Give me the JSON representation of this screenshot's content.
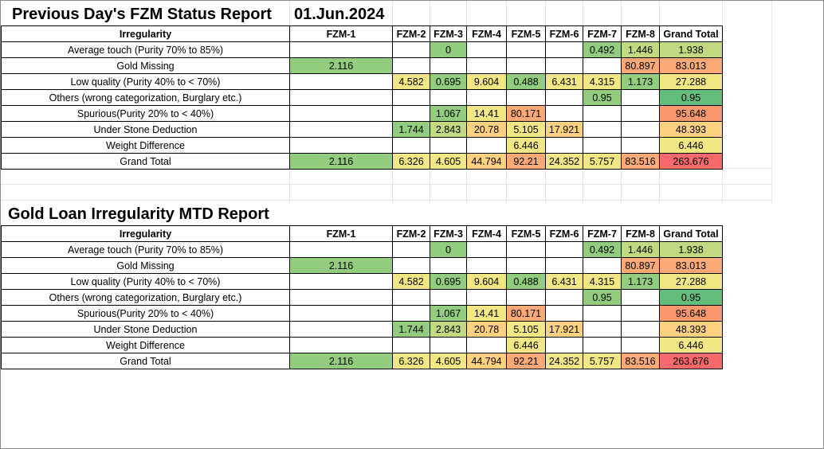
{
  "report1": {
    "title": "Previous Day's FZM Status Report",
    "date": "01.Jun.2024"
  },
  "report2": {
    "title": "Gold Loan Irregularity MTD Report"
  },
  "headers": [
    "Irregularity",
    "FZM-1",
    "FZM-2",
    "FZM-3",
    "FZM-4",
    "FZM-5",
    "FZM-6",
    "FZM-7",
    "FZM-8",
    "Grand Total"
  ],
  "rows": [
    {
      "label": "Average touch (Purity 70% to  85%)",
      "cells": [
        "",
        "",
        "0",
        "",
        "",
        "",
        "0.492",
        "1.446",
        "1.938"
      ]
    },
    {
      "label": "Gold Missing",
      "cells": [
        "2.116",
        "",
        "",
        "",
        "",
        "",
        "",
        "80.897",
        "83.013"
      ]
    },
    {
      "label": "Low quality (Purity 40% to < 70%)",
      "cells": [
        "",
        "4.582",
        "0.695",
        "9.604",
        "0.488",
        "6.431",
        "4.315",
        "1.173",
        "27.288"
      ]
    },
    {
      "label": "Others  (wrong categorization, Burglary etc.)",
      "cells": [
        "",
        "",
        "",
        "",
        "",
        "",
        "0.95",
        "",
        "0.95"
      ]
    },
    {
      "label": "Spurious(Purity 20% to < 40%)",
      "cells": [
        "",
        "",
        "1.067",
        "14.41",
        "80.171",
        "",
        "",
        "",
        "95.648"
      ]
    },
    {
      "label": "Under Stone Deduction",
      "cells": [
        "",
        "1.744",
        "2.843",
        "20.78",
        "5.105",
        "17.921",
        "",
        "",
        "48.393"
      ]
    },
    {
      "label": "Weight Difference",
      "cells": [
        "",
        "",
        "",
        "",
        "6.446",
        "",
        "",
        "",
        "6.446"
      ]
    }
  ],
  "total_row": {
    "label": "Grand Total",
    "cells": [
      "2.116",
      "6.326",
      "4.605",
      "44.794",
      "92.21",
      "24.352",
      "5.757",
      "83.516",
      "263.676"
    ]
  },
  "heat_colors": {
    "best": "#63be7b",
    "good": "#92cc7e",
    "ok": "#c2d982",
    "mid": "#f1e784",
    "warm": "#fdd17f",
    "hot": "#fbaa77",
    "hotter": "#f9986f",
    "worst": "#f8696b"
  }
}
